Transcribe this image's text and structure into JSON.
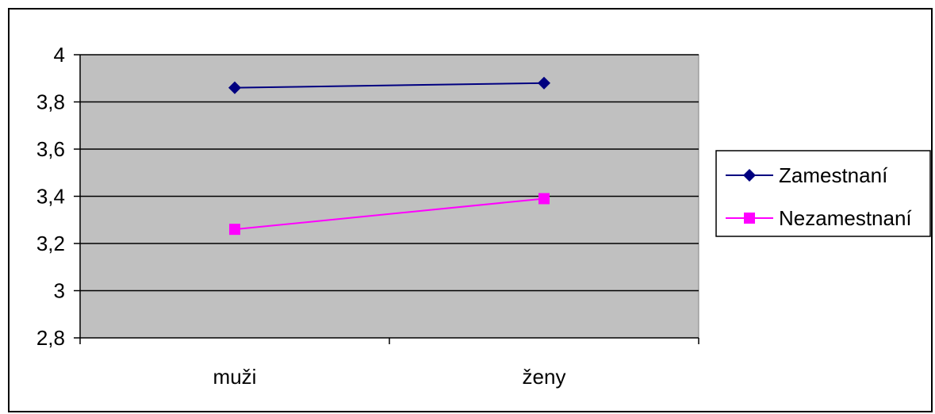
{
  "chart_data": {
    "type": "line",
    "title": "",
    "xlabel": "",
    "ylabel": "",
    "categories": [
      "muži",
      "ženy"
    ],
    "ylim": [
      2.8,
      4
    ],
    "yticks": [
      "4",
      "3,8",
      "3,6",
      "3,4",
      "3,2",
      "3",
      "2,8"
    ],
    "ytick_values": [
      4,
      3.8,
      3.6,
      3.4,
      3.2,
      3,
      2.8
    ],
    "grid": true,
    "legend_position": "right",
    "plot_background": "#c0c0c0",
    "series": [
      {
        "name": "Zamestnaní",
        "values": [
          3.86,
          3.88
        ],
        "color": "#000080",
        "marker": "diamond"
      },
      {
        "name": "Nezamestnaní",
        "values": [
          3.26,
          3.39
        ],
        "color": "#ff00ff",
        "marker": "square"
      }
    ]
  }
}
